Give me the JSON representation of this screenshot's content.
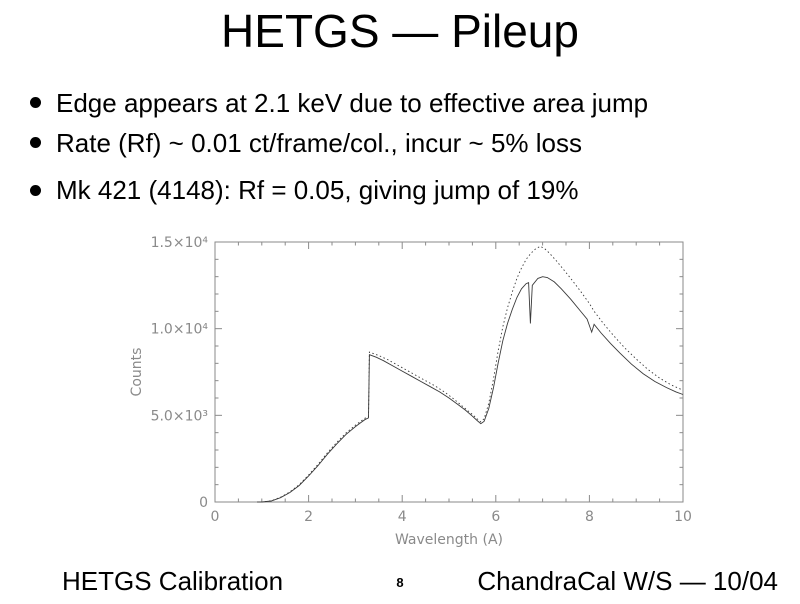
{
  "title": "HETGS — Pileup",
  "bullets": [
    "Edge appears at 2.1 keV due to effective area jump",
    "Rate (Rf) ~ 0.01 ct/frame/col., incur ~ 5% loss",
    "Mk 421 (4148): Rf = 0.05, giving jump of 19%"
  ],
  "footer": {
    "left": "HETGS Calibration",
    "page": "8",
    "right": "ChandraCal W/S — 10/04"
  },
  "chart_data": {
    "type": "line",
    "title": "",
    "xlabel": "Wavelength (A)",
    "ylabel": "Counts",
    "xlim": [
      0,
      10
    ],
    "ylim": [
      0,
      15000
    ],
    "xticks": {
      "values": [
        0,
        2,
        4,
        6,
        8,
        10
      ],
      "labels": [
        "0",
        "2",
        "4",
        "6",
        "8",
        "10"
      ]
    },
    "yticks": {
      "values": [
        0,
        5000,
        10000,
        15000
      ],
      "labels": [
        "0",
        "5.0×10³",
        "1.0×10⁴",
        "1.5×10⁴"
      ]
    },
    "grid": false,
    "legend": "none",
    "layout": {
      "x_minor_step": 0.5,
      "y_minor_step": 1000,
      "frame": true,
      "axis_color": "#8a8a8a",
      "text_color": "#8a8a8a",
      "line_color": "#3a3a3a"
    },
    "series": [
      {
        "name": "counts-solid",
        "style": "solid",
        "points": [
          [
            0.9,
            0
          ],
          [
            1.0,
            0
          ],
          [
            1.2,
            60
          ],
          [
            1.4,
            250
          ],
          [
            1.6,
            550
          ],
          [
            1.8,
            950
          ],
          [
            2.0,
            1500
          ],
          [
            2.2,
            2100
          ],
          [
            2.4,
            2750
          ],
          [
            2.6,
            3350
          ],
          [
            2.8,
            3900
          ],
          [
            3.0,
            4350
          ],
          [
            3.1,
            4550
          ],
          [
            3.2,
            4750
          ],
          [
            3.28,
            4850
          ],
          [
            3.3,
            8500
          ],
          [
            3.45,
            8350
          ],
          [
            3.6,
            8150
          ],
          [
            3.8,
            7850
          ],
          [
            4.0,
            7550
          ],
          [
            4.2,
            7250
          ],
          [
            4.4,
            6950
          ],
          [
            4.6,
            6650
          ],
          [
            4.8,
            6350
          ],
          [
            5.0,
            6000
          ],
          [
            5.2,
            5600
          ],
          [
            5.35,
            5300
          ],
          [
            5.5,
            4950
          ],
          [
            5.6,
            4700
          ],
          [
            5.68,
            4520
          ],
          [
            5.75,
            4650
          ],
          [
            5.85,
            5400
          ],
          [
            5.95,
            6600
          ],
          [
            6.05,
            8000
          ],
          [
            6.15,
            9300
          ],
          [
            6.25,
            10300
          ],
          [
            6.35,
            11100
          ],
          [
            6.45,
            11800
          ],
          [
            6.55,
            12300
          ],
          [
            6.65,
            12600
          ],
          [
            6.7,
            12650
          ],
          [
            6.74,
            10300
          ],
          [
            6.78,
            12500
          ],
          [
            6.9,
            12900
          ],
          [
            7.0,
            13000
          ],
          [
            7.1,
            12950
          ],
          [
            7.25,
            12700
          ],
          [
            7.4,
            12300
          ],
          [
            7.6,
            11700
          ],
          [
            7.8,
            11050
          ],
          [
            7.95,
            10550
          ],
          [
            8.05,
            9800
          ],
          [
            8.1,
            10250
          ],
          [
            8.25,
            9750
          ],
          [
            8.45,
            9150
          ],
          [
            8.65,
            8600
          ],
          [
            8.9,
            7950
          ],
          [
            9.15,
            7400
          ],
          [
            9.4,
            6950
          ],
          [
            9.65,
            6600
          ],
          [
            9.85,
            6350
          ],
          [
            10.0,
            6200
          ]
        ]
      },
      {
        "name": "counts-dotted",
        "style": "dotted",
        "points": [
          [
            0.9,
            0
          ],
          [
            1.0,
            0
          ],
          [
            1.2,
            70
          ],
          [
            1.4,
            270
          ],
          [
            1.6,
            580
          ],
          [
            1.8,
            1000
          ],
          [
            2.0,
            1560
          ],
          [
            2.2,
            2170
          ],
          [
            2.4,
            2830
          ],
          [
            2.6,
            3430
          ],
          [
            2.8,
            3980
          ],
          [
            3.0,
            4430
          ],
          [
            3.2,
            4830
          ],
          [
            3.28,
            4930
          ],
          [
            3.3,
            8650
          ],
          [
            3.5,
            8450
          ],
          [
            3.7,
            8200
          ],
          [
            3.9,
            7900
          ],
          [
            4.1,
            7600
          ],
          [
            4.3,
            7300
          ],
          [
            4.5,
            7000
          ],
          [
            4.7,
            6700
          ],
          [
            4.9,
            6350
          ],
          [
            5.1,
            5950
          ],
          [
            5.3,
            5500
          ],
          [
            5.5,
            5050
          ],
          [
            5.6,
            4800
          ],
          [
            5.68,
            4620
          ],
          [
            5.75,
            4800
          ],
          [
            5.85,
            5700
          ],
          [
            5.95,
            7100
          ],
          [
            6.05,
            8700
          ],
          [
            6.15,
            10100
          ],
          [
            6.25,
            11200
          ],
          [
            6.35,
            12100
          ],
          [
            6.45,
            12900
          ],
          [
            6.55,
            13500
          ],
          [
            6.65,
            14000
          ],
          [
            6.75,
            14350
          ],
          [
            6.85,
            14600
          ],
          [
            6.95,
            14750
          ],
          [
            7.05,
            14600
          ],
          [
            7.15,
            14350
          ],
          [
            7.3,
            13900
          ],
          [
            7.45,
            13400
          ],
          [
            7.6,
            12900
          ],
          [
            7.8,
            12200
          ],
          [
            8.0,
            11450
          ],
          [
            8.1,
            11000
          ],
          [
            8.3,
            10300
          ],
          [
            8.5,
            9650
          ],
          [
            8.75,
            8900
          ],
          [
            9.0,
            8250
          ],
          [
            9.25,
            7650
          ],
          [
            9.5,
            7150
          ],
          [
            9.75,
            6750
          ],
          [
            10.0,
            6450
          ]
        ]
      }
    ]
  }
}
